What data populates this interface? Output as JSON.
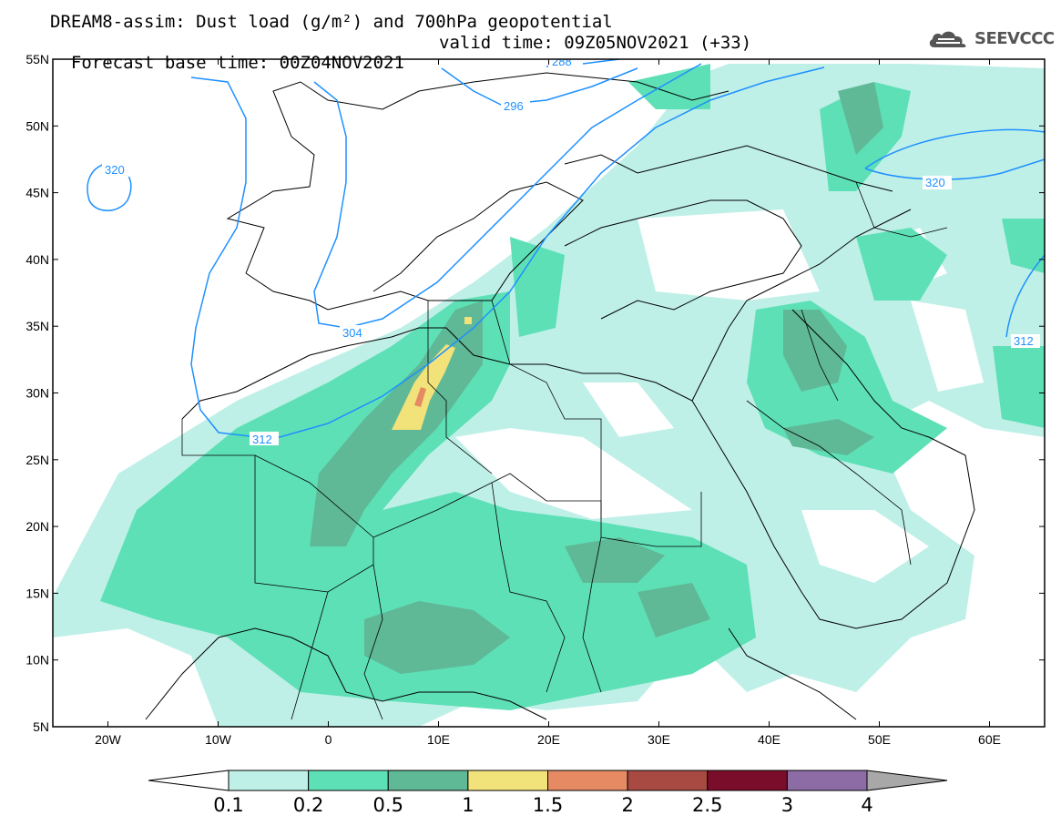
{
  "title": {
    "line1": "DREAM8-assim: Dust load (g/m²) and 700hPa geopotential",
    "line2_base": "Forecast base time: 00Z04NOV2021",
    "line2_valid": "valid time: 09Z05NOV2021 (+33)"
  },
  "logo": {
    "text": "SEEVCCC",
    "icon": "cloud-logo-icon"
  },
  "map": {
    "lon_range": [
      -25,
      65
    ],
    "lat_range": [
      5,
      55
    ],
    "lat_ticks": [
      "5N",
      "10N",
      "15N",
      "20N",
      "25N",
      "30N",
      "35N",
      "40N",
      "45N",
      "50N",
      "55N"
    ],
    "lon_ticks": [
      "20W",
      "10W",
      "0",
      "10E",
      "20E",
      "30E",
      "40E",
      "50E",
      "60E"
    ],
    "contour_labels": [
      "288",
      "296",
      "304",
      "312",
      "320",
      "320",
      "312"
    ]
  },
  "colorbar": {
    "labels": [
      "0.1",
      "0.2",
      "0.5",
      "1",
      "1.5",
      "2",
      "2.5",
      "3",
      "4"
    ],
    "colors": [
      "#ffffff",
      "#bff0e8",
      "#5ee0b6",
      "#5fb896",
      "#f2e27a",
      "#e58a62",
      "#a94a42",
      "#7a0e2a",
      "#8d6ba5",
      "#a8a8a8"
    ],
    "units": "g/m²"
  },
  "colors": {
    "geopotential_contour": "#1e90ff",
    "coastline": "#000000",
    "frame": "#000000"
  }
}
